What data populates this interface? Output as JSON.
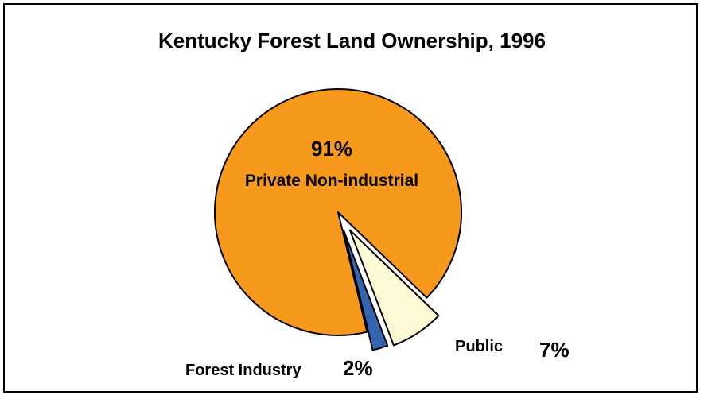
{
  "chart_data": {
    "type": "pie",
    "title": "Kentucky Forest Land Ownership, 1996",
    "slices": [
      {
        "name": "Private Non-industrial",
        "value": 91,
        "label": "91%",
        "color": "#F7991D"
      },
      {
        "name": "Public",
        "value": 7,
        "label": "7%",
        "color": "#FCF9D5"
      },
      {
        "name": "Forest Industry",
        "value": 2,
        "label": "2%",
        "color": "#3465AF"
      }
    ],
    "exploded": [
      "Public",
      "Forest Industry"
    ],
    "legend": "none"
  }
}
